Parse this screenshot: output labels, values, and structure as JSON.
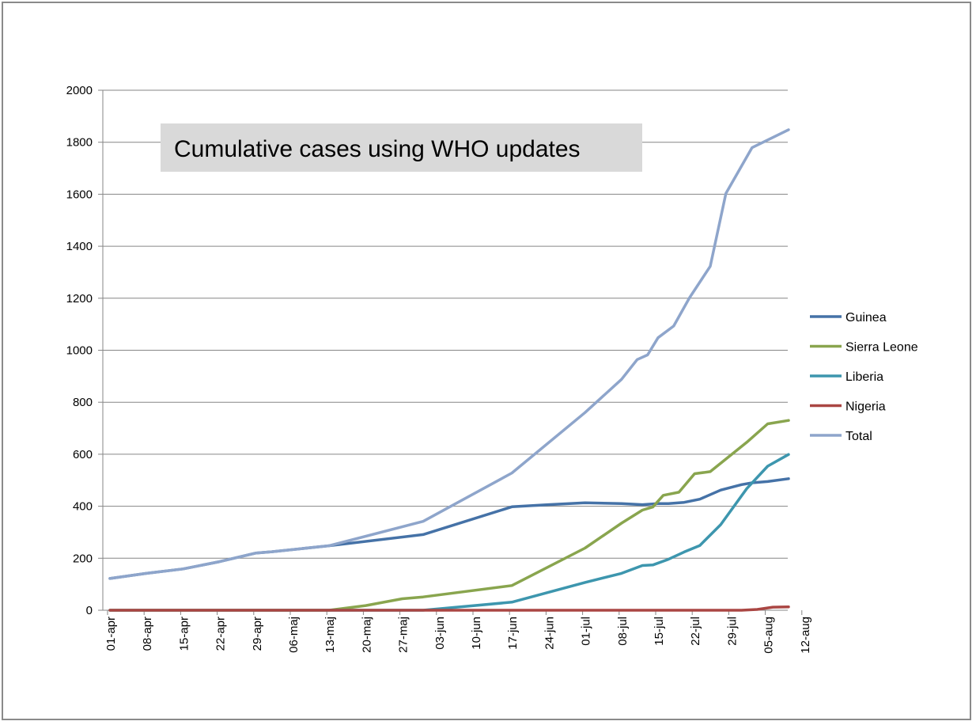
{
  "chart_data": {
    "type": "line",
    "title": "Cumulative cases using WHO updates",
    "xlabel": "",
    "ylabel": "",
    "ylim": [
      0,
      2000
    ],
    "yticks": [
      0,
      200,
      400,
      600,
      800,
      1000,
      1200,
      1400,
      1600,
      1800,
      2000
    ],
    "xlim_days": [
      0,
      133
    ],
    "x_ticks": [
      {
        "label": "01-apr",
        "day": 0
      },
      {
        "label": "08-apr",
        "day": 7
      },
      {
        "label": "15-apr",
        "day": 14
      },
      {
        "label": "22-apr",
        "day": 21
      },
      {
        "label": "29-apr",
        "day": 28
      },
      {
        "label": "06-maj",
        "day": 35
      },
      {
        "label": "13-maj",
        "day": 42
      },
      {
        "label": "20-maj",
        "day": 49
      },
      {
        "label": "27-maj",
        "day": 56
      },
      {
        "label": "03-jun",
        "day": 63
      },
      {
        "label": "10-jun",
        "day": 70
      },
      {
        "label": "17-jun",
        "day": 77
      },
      {
        "label": "24-jun",
        "day": 84
      },
      {
        "label": "01-jul",
        "day": 91
      },
      {
        "label": "08-jul",
        "day": 98
      },
      {
        "label": "15-jul",
        "day": 105
      },
      {
        "label": "22-jul",
        "day": 112
      },
      {
        "label": "29-jul",
        "day": 119
      },
      {
        "label": "05-aug",
        "day": 126
      },
      {
        "label": "12-aug",
        "day": 133
      }
    ],
    "legend_position": "right",
    "grid": true,
    "series": [
      {
        "name": "Guinea",
        "color": "#4572A7",
        "points": [
          [
            0,
            122
          ],
          [
            7,
            142
          ],
          [
            14,
            159
          ],
          [
            21,
            187
          ],
          [
            28,
            220
          ],
          [
            31,
            225
          ],
          [
            42,
            248
          ],
          [
            60,
            291
          ],
          [
            77,
            398
          ],
          [
            84,
            406
          ],
          [
            91,
            413
          ],
          [
            98,
            410
          ],
          [
            102,
            406
          ],
          [
            105,
            410
          ],
          [
            107,
            410
          ],
          [
            110,
            415
          ],
          [
            113,
            427
          ],
          [
            117,
            462
          ],
          [
            121,
            483
          ],
          [
            123,
            490
          ],
          [
            126,
            495
          ],
          [
            130,
            506
          ]
        ]
      },
      {
        "name": "Sierra Leone",
        "color": "#89A54E",
        "points": [
          [
            0,
            0
          ],
          [
            42,
            0
          ],
          [
            49,
            18
          ],
          [
            56,
            44
          ],
          [
            60,
            51
          ],
          [
            77,
            95
          ],
          [
            91,
            239
          ],
          [
            98,
            335
          ],
          [
            102,
            385
          ],
          [
            104,
            397
          ],
          [
            106,
            442
          ],
          [
            109,
            454
          ],
          [
            112,
            525
          ],
          [
            115,
            533
          ],
          [
            122,
            646
          ],
          [
            126,
            717
          ],
          [
            130,
            730
          ]
        ]
      },
      {
        "name": "Liberia",
        "color": "#3D96AE",
        "points": [
          [
            0,
            0
          ],
          [
            60,
            0
          ],
          [
            77,
            31
          ],
          [
            91,
            107
          ],
          [
            98,
            142
          ],
          [
            102,
            172
          ],
          [
            104,
            174
          ],
          [
            107,
            196
          ],
          [
            110,
            224
          ],
          [
            113,
            249
          ],
          [
            117,
            329
          ],
          [
            122,
            468
          ],
          [
            126,
            554
          ],
          [
            130,
            599
          ]
        ]
      },
      {
        "name": "Nigeria",
        "color": "#AA4643",
        "points": [
          [
            0,
            0
          ],
          [
            121,
            0
          ],
          [
            124,
            3
          ],
          [
            127,
            12
          ],
          [
            130,
            13
          ]
        ]
      },
      {
        "name": "Total",
        "color": "#8EA5CB",
        "points": [
          [
            0,
            122
          ],
          [
            7,
            142
          ],
          [
            14,
            159
          ],
          [
            21,
            187
          ],
          [
            28,
            220
          ],
          [
            31,
            225
          ],
          [
            42,
            248
          ],
          [
            60,
            342
          ],
          [
            77,
            528
          ],
          [
            91,
            760
          ],
          [
            98,
            888
          ],
          [
            101,
            964
          ],
          [
            103,
            982
          ],
          [
            105,
            1048
          ],
          [
            108,
            1093
          ],
          [
            111,
            1201
          ],
          [
            115,
            1323
          ],
          [
            118,
            1603
          ],
          [
            123,
            1779
          ],
          [
            130,
            1848
          ]
        ]
      }
    ]
  }
}
